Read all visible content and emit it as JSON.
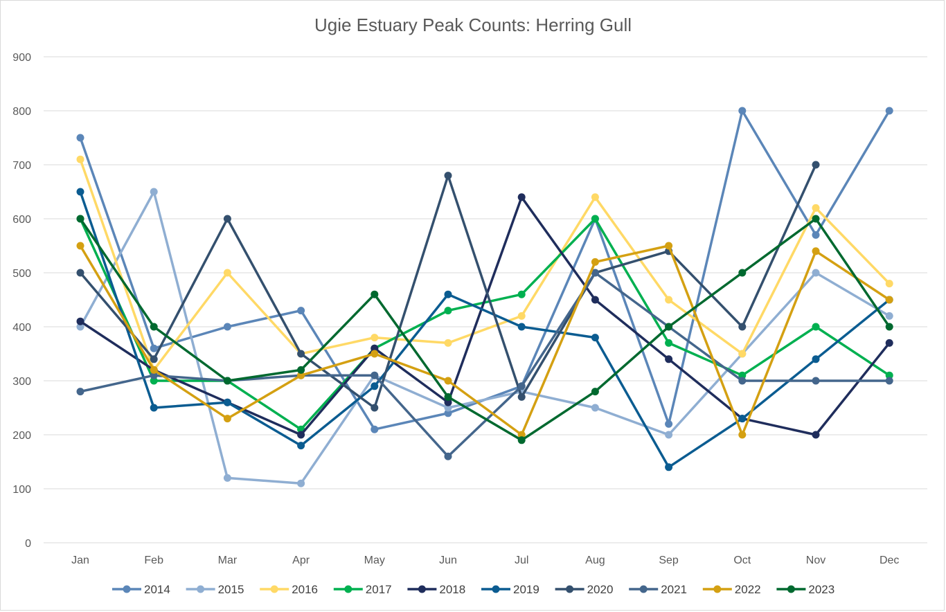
{
  "chart_data": {
    "type": "line",
    "title": "Ugie Estuary Peak Counts: Herring Gull",
    "xlabel": "",
    "ylabel": "",
    "ylim": [
      0,
      900
    ],
    "yticks": [
      0,
      100,
      200,
      300,
      400,
      500,
      600,
      700,
      800,
      900
    ],
    "grid": "horizontal",
    "legend": "bottom",
    "categories": [
      "Jan",
      "Feb",
      "Mar",
      "Apr",
      "May",
      "Jun",
      "Jul",
      "Aug",
      "Sep",
      "Oct",
      "Nov",
      "Dec"
    ],
    "series": [
      {
        "name": "2014",
        "color": "#5b86b8",
        "values": [
          750,
          360,
          400,
          430,
          210,
          240,
          290,
          600,
          220,
          800,
          570,
          800
        ]
      },
      {
        "name": "2015",
        "color": "#8faed2",
        "values": [
          400,
          650,
          120,
          110,
          310,
          250,
          280,
          250,
          200,
          350,
          500,
          420
        ]
      },
      {
        "name": "2016",
        "color": "#ffd966",
        "values": [
          710,
          320,
          500,
          350,
          380,
          370,
          420,
          640,
          450,
          350,
          620,
          480
        ]
      },
      {
        "name": "2017",
        "color": "#00b050",
        "values": [
          600,
          300,
          300,
          210,
          360,
          430,
          460,
          600,
          370,
          310,
          400,
          310
        ]
      },
      {
        "name": "2018",
        "color": "#1f2d5c",
        "values": [
          410,
          320,
          260,
          200,
          360,
          260,
          640,
          450,
          340,
          230,
          200,
          370
        ]
      },
      {
        "name": "2019",
        "color": "#0b5c91",
        "values": [
          650,
          250,
          260,
          180,
          290,
          460,
          400,
          380,
          140,
          230,
          340,
          450
        ]
      },
      {
        "name": "2020",
        "color": "#34506e",
        "values": [
          500,
          340,
          600,
          350,
          250,
          680,
          270,
          500,
          540,
          400,
          700,
          null
        ]
      },
      {
        "name": "2021",
        "color": "#44668c",
        "values": [
          280,
          310,
          300,
          310,
          310,
          160,
          290,
          500,
          400,
          300,
          300,
          300
        ]
      },
      {
        "name": "2022",
        "color": "#d4a012",
        "values": [
          550,
          320,
          230,
          310,
          350,
          300,
          200,
          520,
          550,
          200,
          540,
          450
        ]
      },
      {
        "name": "2023",
        "color": "#00692f",
        "values": [
          600,
          400,
          300,
          320,
          460,
          270,
          190,
          280,
          400,
          500,
          600,
          400
        ]
      }
    ]
  }
}
